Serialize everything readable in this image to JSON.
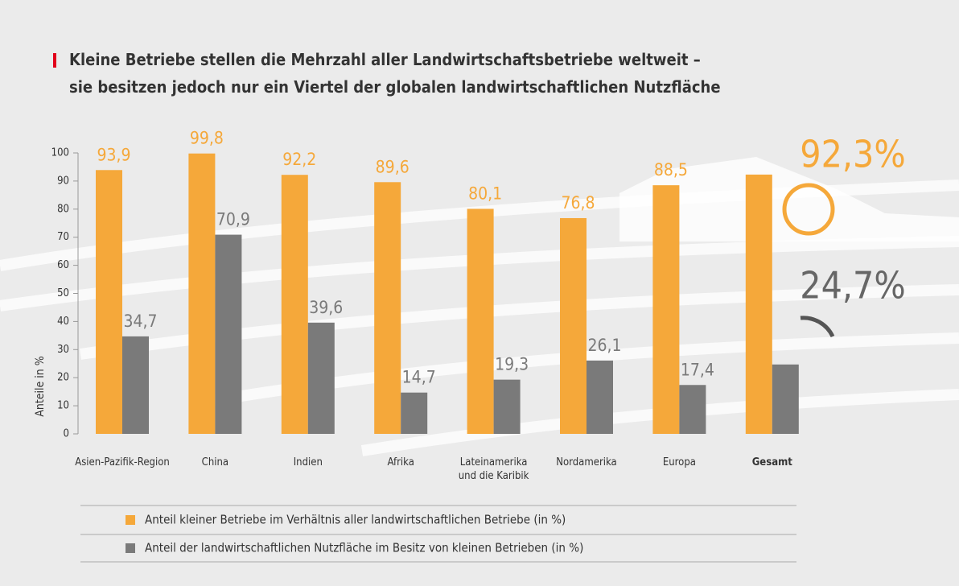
{
  "chart_data": {
    "type": "bar",
    "title": "Kleine Betriebe stellen die Mehrzahl aller Landwirtschaftsbetriebe weltweit –",
    "subtitle": "sie besitzen jedoch nur ein Viertel der globalen landwirtschaftlichen Nutzfläche",
    "y_label": "Anteile in %",
    "categories": [
      "Asien-Pazifik-Region",
      "China",
      "Indien",
      "Afrika",
      "Lateinamerika\nund die Karibik",
      "Nordamerika",
      "Europa",
      "Gesamt"
    ],
    "series": [
      {
        "name": "Anteil kleiner Betriebe im Verhältnis aller landwirtschaftlichen Betriebe (in %)",
        "color": "#f5a83a",
        "values": [
          93.9,
          99.8,
          92.2,
          89.6,
          80.1,
          76.8,
          88.5,
          92.3
        ],
        "value_labels": [
          "93,9",
          "99,8",
          "92,2",
          "89,6",
          "80,1",
          "76,8",
          "88,5",
          "92,3%"
        ]
      },
      {
        "name": "Anteil der landwirtschaftlichen Nutzfläche im Besitz von kleinen Betrieben (in %)",
        "color": "#7a7a7a",
        "values": [
          34.7,
          70.9,
          39.6,
          14.7,
          19.3,
          26.1,
          17.4,
          24.7
        ],
        "value_labels": [
          "34,7",
          "70,9",
          "39,6",
          "14,7",
          "19,3",
          "26,1",
          "17,4",
          "24,7%"
        ]
      }
    ],
    "ylim": [
      0,
      100
    ],
    "yticks": [
      0,
      10,
      20,
      30,
      40,
      50,
      60,
      70,
      80,
      90,
      100
    ]
  }
}
